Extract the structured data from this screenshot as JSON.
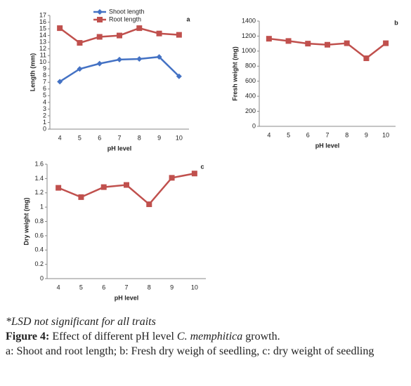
{
  "chart_data": [
    {
      "type": "line",
      "panel_label": "a",
      "y_label": "Length (mm)",
      "x_label": "pH level",
      "categories": [
        "4",
        "5",
        "6",
        "7",
        "8",
        "9",
        "10"
      ],
      "series": [
        {
          "name": "Shoot length",
          "color": "#4472c4",
          "marker": "diamond",
          "values": [
            7.1,
            9.0,
            9.8,
            10.4,
            10.5,
            10.8,
            7.9
          ]
        },
        {
          "name": "Root length",
          "color": "#c0504d",
          "marker": "square",
          "values": [
            15.1,
            12.9,
            13.8,
            14.0,
            15.1,
            14.3,
            14.1
          ]
        }
      ],
      "ylim": [
        0,
        17
      ],
      "yticks": [
        0,
        1,
        2,
        3,
        4,
        5,
        6,
        7,
        8,
        9,
        10,
        11,
        12,
        13,
        14,
        15,
        16,
        17
      ],
      "legend": "top"
    },
    {
      "type": "line",
      "panel_label": "b",
      "y_label": "Fresh weight (mg)",
      "x_label": "pH level",
      "categories": [
        "4",
        "5",
        "6",
        "7",
        "8",
        "9",
        "10"
      ],
      "series": [
        {
          "color": "#c0504d",
          "marker": "square",
          "values": [
            1165,
            1135,
            1100,
            1085,
            1105,
            905,
            1105
          ]
        }
      ],
      "ylim": [
        0,
        1400
      ],
      "yticks": [
        0,
        200,
        400,
        600,
        800,
        1000,
        1200,
        1400
      ]
    },
    {
      "type": "line",
      "panel_label": "c",
      "y_label": "Dry weight (mg)",
      "x_label": "pH level",
      "categories": [
        "4",
        "5",
        "6",
        "7",
        "8",
        "9",
        "10"
      ],
      "series": [
        {
          "color": "#c0504d",
          "marker": "square",
          "values": [
            1.27,
            1.14,
            1.28,
            1.31,
            1.04,
            1.41,
            1.47
          ]
        }
      ],
      "ylim": [
        0,
        1.6
      ],
      "yticks": [
        0,
        0.2,
        0.4,
        0.6,
        0.8,
        1,
        1.2,
        1.4,
        1.6
      ]
    }
  ],
  "caption": {
    "note": "*LSD not significant for all traits",
    "figure_label": "Figure 4:",
    "title_start": "Effect of different pH level",
    "species": "C. memphitica",
    "title_end": "growth.",
    "description": "a: Shoot and root length; b: Fresh dry weigh of seedling, c: dry weight of seedling"
  }
}
